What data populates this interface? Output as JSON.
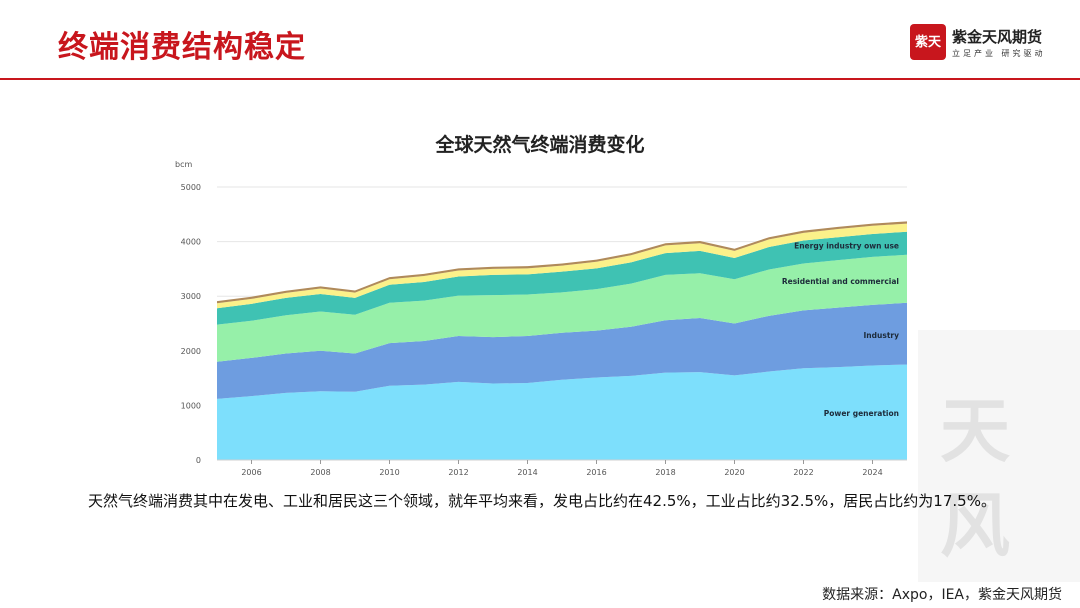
{
  "header": {
    "title": "终端消费结构稳定",
    "brand_name": "紫金天风期货",
    "brand_slogan": "立足产业 研究驱动",
    "logo_text": "紫天"
  },
  "chart_data": {
    "type": "area",
    "title": "全球天然气终端消费变化",
    "ylabel": "bcm",
    "xlabel": "",
    "ylim": [
      0,
      5000
    ],
    "xlim": [
      2005,
      2025
    ],
    "yticks": [
      0,
      1000,
      2000,
      3000,
      4000,
      5000
    ],
    "xticks": [
      2006,
      2008,
      2010,
      2012,
      2014,
      2016,
      2018,
      2020,
      2022,
      2024
    ],
    "grid": true,
    "stacked": true,
    "x": [
      2005,
      2006,
      2007,
      2008,
      2009,
      2010,
      2011,
      2012,
      2013,
      2014,
      2015,
      2016,
      2017,
      2018,
      2019,
      2020,
      2021,
      2022,
      2023,
      2024,
      2025
    ],
    "series": [
      {
        "name": "Power generation",
        "color": "#7ddffc",
        "values": [
          1120,
          1170,
          1230,
          1260,
          1250,
          1360,
          1380,
          1430,
          1400,
          1410,
          1470,
          1510,
          1540,
          1600,
          1610,
          1550,
          1620,
          1680,
          1700,
          1730,
          1750
        ]
      },
      {
        "name": "Industry",
        "color": "#6e9de0",
        "values": [
          680,
          700,
          720,
          740,
          700,
          780,
          800,
          840,
          850,
          860,
          860,
          860,
          900,
          960,
          990,
          950,
          1020,
          1060,
          1090,
          1110,
          1130
        ]
      },
      {
        "name": "Residential and commercial",
        "color": "#96f0a9",
        "values": [
          680,
          680,
          700,
          720,
          710,
          740,
          740,
          740,
          770,
          760,
          740,
          760,
          790,
          830,
          820,
          810,
          850,
          860,
          870,
          880,
          880
        ]
      },
      {
        "name": "Energy industry own use",
        "color": "#3fc2b3",
        "values": [
          300,
          310,
          320,
          320,
          310,
          330,
          340,
          350,
          370,
          370,
          380,
          380,
          390,
          400,
          410,
          390,
          410,
          420,
          420,
          420,
          420
        ]
      },
      {
        "name": "",
        "color": "#fbf18a",
        "values": [
          90,
          90,
          90,
          100,
          95,
          100,
          110,
          110,
          110,
          110,
          110,
          120,
          130,
          140,
          140,
          130,
          140,
          140,
          150,
          150,
          150
        ]
      },
      {
        "name": "",
        "color": "#b08a5a",
        "values": [
          40,
          40,
          40,
          40,
          40,
          40,
          40,
          40,
          40,
          40,
          40,
          40,
          40,
          40,
          40,
          40,
          40,
          40,
          40,
          40,
          40
        ]
      }
    ]
  },
  "caption": "天然气终端消费其中在发电、工业和居民这三个领域，就年平均来看，发电占比约在42.5%，工业占比约32.5%，居民占比约为17.5%。",
  "source": "数据来源：Axpo，IEA，紫金天风期货",
  "watermark": {
    "char1": "天",
    "char2": "风"
  }
}
